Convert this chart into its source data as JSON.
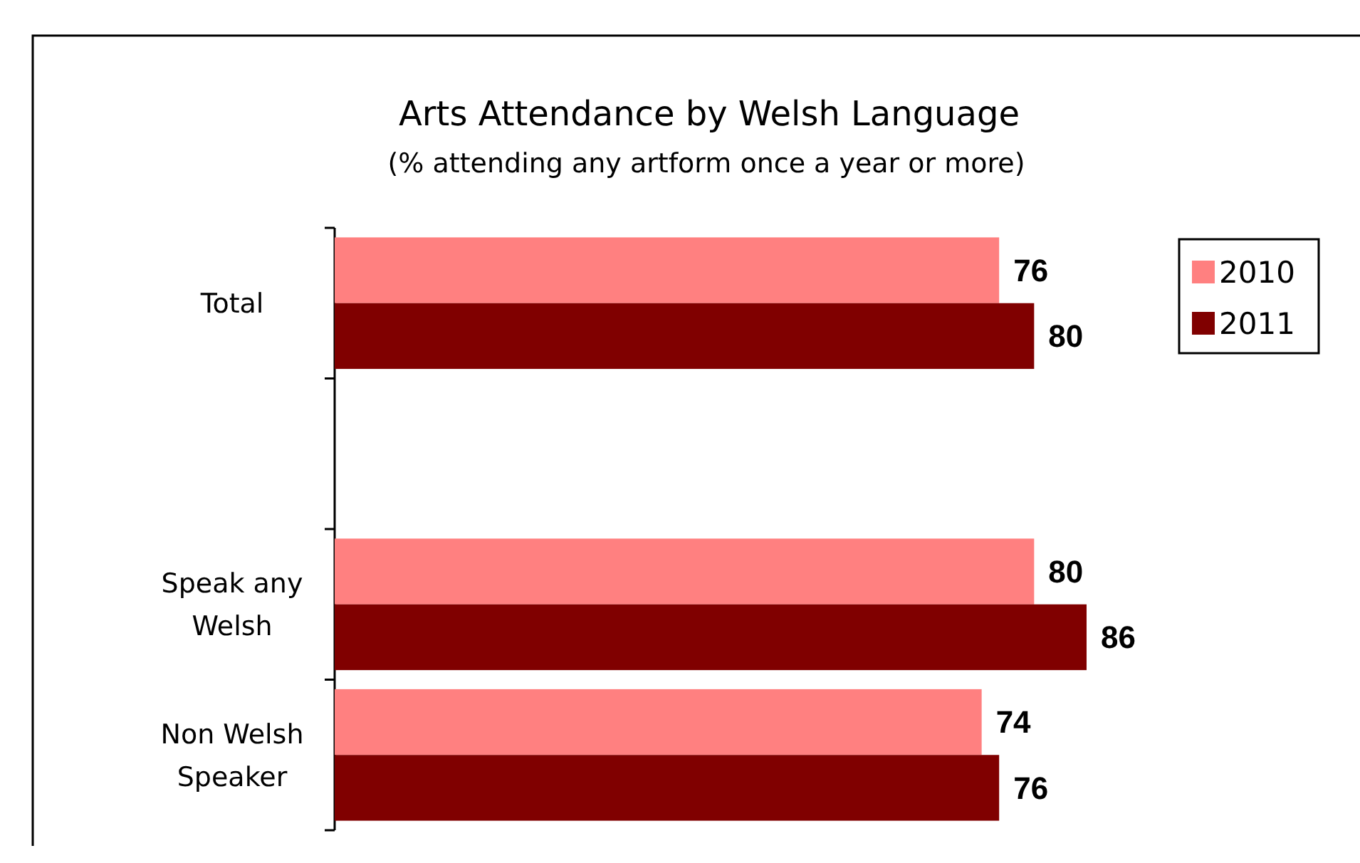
{
  "chart_data": {
    "type": "bar",
    "orientation": "horizontal",
    "title": "Arts Attendance by Welsh Language",
    "subtitle": "(% attending any artform once a year or more)",
    "categories": [
      "Total",
      null,
      "Speak any Welsh",
      "Non Welsh Speaker"
    ],
    "series": [
      {
        "name": "2010",
        "color": "#ff8080",
        "values": [
          76,
          null,
          80,
          74
        ]
      },
      {
        "name": "2011",
        "color": "#800000",
        "values": [
          80,
          null,
          86,
          76
        ]
      }
    ],
    "data_labels": true,
    "legend": "top right"
  }
}
